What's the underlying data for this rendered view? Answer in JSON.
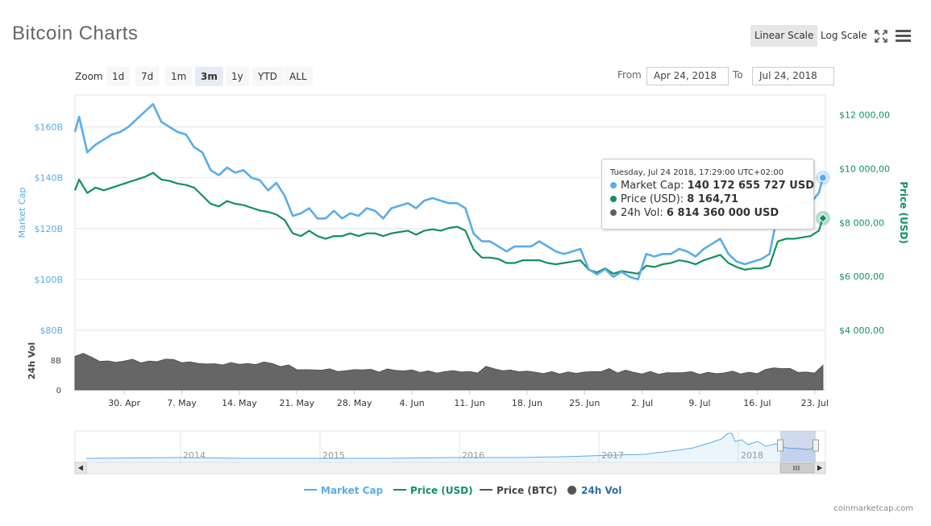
{
  "header": {
    "title": "Bitcoin Charts",
    "scale_linear": "Linear Scale",
    "scale_log": "Log Scale",
    "fullscreen_icon": "fullscreen-icon",
    "menu_icon": "hamburger-menu-icon"
  },
  "zoom": {
    "label": "Zoom",
    "buttons": [
      "1d",
      "7d",
      "1m",
      "3m",
      "1y",
      "YTD",
      "ALL"
    ],
    "active": "3m"
  },
  "range": {
    "from_label": "From",
    "from_value": "Apr 24, 2018",
    "to_label": "To",
    "to_value": "Jul 24, 2018"
  },
  "tooltip": {
    "date": "Tuesday, Jul 24 2018, 17:29:00 UTC+02:00",
    "rows": [
      {
        "label": "Market Cap:",
        "value": "140 172 655 727 USD",
        "color": "#5aacea"
      },
      {
        "label": "Price (USD):",
        "value": "8 164,71",
        "color": "#119060"
      },
      {
        "label": "24h Vol:",
        "value": "6 814 360 000 USD",
        "color": "#606060"
      }
    ]
  },
  "legend": [
    {
      "name": "Market Cap",
      "color": "#5aacea",
      "symbol": "line"
    },
    {
      "name": "Price (USD)",
      "color": "#119060",
      "symbol": "line"
    },
    {
      "name": "Price (BTC)",
      "color": "#555555",
      "symbol": "line"
    },
    {
      "name": "24h Vol",
      "color": "#555555",
      "symbol": "circle"
    }
  ],
  "credit": "coinmarketcap.com",
  "chart_data": {
    "type": "line",
    "title": "Bitcoin Charts",
    "colors": {
      "market_cap": "#5aacea",
      "price_usd": "#119060",
      "volume": "#606060",
      "left_axis": "#5aacea",
      "right_axis": "#119060"
    },
    "left_axis": {
      "label": "Market Cap",
      "ticks": [
        "$80B",
        "$100B",
        "$120B",
        "$140B",
        "$160B"
      ],
      "tick_values": [
        80,
        100,
        120,
        140,
        160
      ],
      "range": [
        80,
        170
      ]
    },
    "right_axis": {
      "label": "Price (USD)",
      "ticks": [
        "$4 000,00",
        "$6 000,00",
        "$8 000,00",
        "$10 000,00",
        "$12 000,00"
      ],
      "tick_values": [
        4000,
        6000,
        8000,
        10000,
        12000
      ],
      "range": [
        4000,
        12500
      ]
    },
    "volume_axis": {
      "label": "24h Vol",
      "ticks": [
        "0",
        "8B"
      ],
      "tick_values": [
        0,
        8
      ],
      "range": [
        0,
        13
      ]
    },
    "x_ticks": [
      "30. Apr",
      "7. May",
      "14. May",
      "21. May",
      "28. May",
      "4. Jun",
      "11. Jun",
      "18. Jun",
      "25. Jun",
      "2. Jul",
      "9. Jul",
      "16. Jul",
      "23. Jul"
    ],
    "x_tick_days": [
      6,
      13,
      20,
      27,
      34,
      41,
      48,
      55,
      62,
      69,
      76,
      83,
      90
    ],
    "x_range_days": [
      0,
      91.3
    ],
    "series": [
      {
        "name": "Market Cap",
        "unit": "USD billions",
        "axis": "left",
        "x": [
          0,
          0.5,
          1.5,
          2.5,
          3.5,
          4.5,
          5.5,
          6.5,
          7.5,
          8.5,
          9.5,
          10.5,
          11.5,
          12.5,
          13.5,
          14.5,
          15.5,
          16.5,
          17.5,
          18.5,
          19.5,
          20.5,
          21.5,
          22.5,
          23.5,
          24.5,
          25.5,
          26.5,
          27.5,
          28.5,
          29.5,
          30.5,
          31.5,
          32.5,
          33.5,
          34.5,
          35.5,
          36.5,
          37.5,
          38.5,
          39.5,
          40.5,
          41.5,
          42.5,
          43.5,
          44.5,
          45.5,
          46.5,
          47.5,
          48.5,
          49.5,
          50.5,
          51.5,
          52.5,
          53.5,
          54.5,
          55.5,
          56.5,
          57.5,
          58.5,
          59.5,
          60.5,
          61.5,
          62.5,
          63.5,
          64.5,
          65.5,
          66.5,
          67.5,
          68.5,
          69.5,
          70.5,
          71.5,
          72.5,
          73.5,
          74.5,
          75.5,
          76.5,
          77.5,
          78.5,
          79.5,
          80.5,
          81.5,
          82.5,
          83.5,
          84.5,
          85.5,
          86.5,
          87.5,
          88.5,
          89.5,
          90.5,
          91
        ],
        "y": [
          158,
          164,
          150,
          153,
          155,
          157,
          158,
          160,
          163,
          166,
          169,
          162,
          160,
          158,
          157,
          152,
          150,
          143,
          141,
          144,
          142,
          143,
          140,
          139,
          135,
          138,
          133,
          125,
          126,
          128,
          124,
          124,
          127,
          124,
          126,
          125,
          128,
          127,
          124,
          128,
          129,
          130,
          128,
          131,
          132,
          131,
          130,
          130,
          128,
          118,
          115,
          115,
          113,
          111,
          113,
          113,
          113,
          115,
          113,
          111,
          110,
          111,
          112,
          104,
          102,
          104,
          101,
          103,
          101,
          100,
          110,
          109,
          110,
          110,
          112,
          111,
          109,
          112,
          114,
          116,
          110,
          107,
          106,
          107,
          108,
          110,
          126,
          128,
          129,
          130,
          130,
          134,
          140
        ]
      },
      {
        "name": "Price (USD)",
        "unit": "USD",
        "axis": "right",
        "x": [
          0,
          0.5,
          1.5,
          2.5,
          3.5,
          4.5,
          5.5,
          6.5,
          7.5,
          8.5,
          9.5,
          10.5,
          11.5,
          12.5,
          13.5,
          14.5,
          15.5,
          16.5,
          17.5,
          18.5,
          19.5,
          20.5,
          21.5,
          22.5,
          23.5,
          24.5,
          25.5,
          26.5,
          27.5,
          28.5,
          29.5,
          30.5,
          31.5,
          32.5,
          33.5,
          34.5,
          35.5,
          36.5,
          37.5,
          38.5,
          39.5,
          40.5,
          41.5,
          42.5,
          43.5,
          44.5,
          45.5,
          46.5,
          47.5,
          48.5,
          49.5,
          50.5,
          51.5,
          52.5,
          53.5,
          54.5,
          55.5,
          56.5,
          57.5,
          58.5,
          59.5,
          60.5,
          61.5,
          62.5,
          63.5,
          64.5,
          65.5,
          66.5,
          67.5,
          68.5,
          69.5,
          70.5,
          71.5,
          72.5,
          73.5,
          74.5,
          75.5,
          76.5,
          77.5,
          78.5,
          79.5,
          80.5,
          81.5,
          82.5,
          83.5,
          84.5,
          85.5,
          86.5,
          87.5,
          88.5,
          89.5,
          90.5,
          91
        ],
        "y": [
          9200,
          9600,
          9100,
          9300,
          9200,
          9300,
          9400,
          9500,
          9600,
          9700,
          9850,
          9600,
          9550,
          9450,
          9400,
          9300,
          9000,
          8700,
          8600,
          8800,
          8700,
          8650,
          8550,
          8450,
          8400,
          8300,
          8100,
          7600,
          7500,
          7700,
          7500,
          7400,
          7500,
          7500,
          7600,
          7500,
          7600,
          7600,
          7500,
          7600,
          7650,
          7700,
          7550,
          7700,
          7750,
          7700,
          7800,
          7850,
          7700,
          7000,
          6700,
          6700,
          6650,
          6500,
          6500,
          6600,
          6600,
          6600,
          6500,
          6450,
          6500,
          6550,
          6600,
          6250,
          6150,
          6300,
          6100,
          6200,
          6150,
          6100,
          6400,
          6350,
          6450,
          6500,
          6600,
          6550,
          6450,
          6600,
          6700,
          6800,
          6500,
          6350,
          6250,
          6300,
          6300,
          6400,
          7300,
          7400,
          7400,
          7450,
          7500,
          7700,
          8164.71
        ]
      },
      {
        "name": "24h Vol",
        "unit": "USD billions",
        "axis": "volume",
        "x": [
          0,
          1,
          2,
          3,
          4,
          5,
          6,
          7,
          8,
          9,
          10,
          11,
          12,
          13,
          14,
          15,
          16,
          17,
          18,
          19,
          20,
          21,
          22,
          23,
          24,
          25,
          26,
          27,
          28,
          29,
          30,
          31,
          32,
          33,
          34,
          35,
          36,
          37,
          38,
          39,
          40,
          41,
          42,
          43,
          44,
          45,
          46,
          47,
          48,
          49,
          50,
          51,
          52,
          53,
          54,
          55,
          56,
          57,
          58,
          59,
          60,
          61,
          62,
          63,
          64,
          65,
          66,
          67,
          68,
          69,
          70,
          71,
          72,
          73,
          74,
          75,
          76,
          77,
          78,
          79,
          80,
          81,
          82,
          83,
          84,
          85,
          86,
          87,
          88,
          89,
          90,
          91
        ],
        "y": [
          9,
          10,
          8.5,
          8,
          7.5,
          7.5,
          7.8,
          8,
          7.6,
          7.4,
          7.8,
          8.2,
          8,
          7.6,
          7.2,
          7.4,
          6.8,
          7,
          6.9,
          7,
          7.2,
          6.8,
          6.9,
          7.6,
          6.8,
          6.6,
          6.4,
          5.6,
          5.4,
          5.2,
          5.6,
          5.3,
          5.2,
          5,
          5.4,
          5.6,
          5.2,
          5.1,
          5.4,
          5.3,
          5.2,
          5.1,
          5,
          4.8,
          4.7,
          4.9,
          5,
          5.1,
          4.6,
          4.8,
          6.2,
          5.6,
          5.4,
          5,
          5.2,
          4.8,
          4.8,
          4.5,
          4.6,
          4.6,
          4.5,
          4.6,
          4.8,
          4.7,
          5.2,
          5.4,
          4.8,
          5.2,
          4.6,
          4.5,
          4.6,
          4.5,
          4.4,
          4.6,
          4.8,
          4.6,
          4.5,
          4.4,
          4.5,
          4.6,
          4.8,
          4.6,
          4.4,
          4.6,
          5.4,
          5.8,
          6,
          5.4,
          5,
          4.6,
          4.5,
          6.8
        ]
      }
    ],
    "navigator": {
      "years": [
        "2014",
        "2015",
        "2016",
        "2017",
        "2018"
      ]
    }
  }
}
